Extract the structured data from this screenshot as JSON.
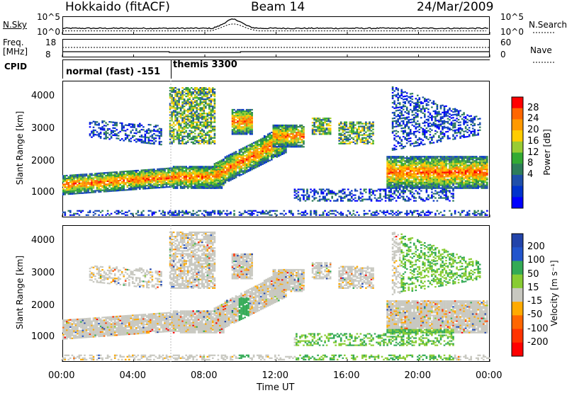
{
  "header": {
    "title": "Hokkaido (fitACF)",
    "beam": "Beam 14",
    "date": "24/Mar/2009"
  },
  "top_panel": {
    "left_label": "N.Sky",
    "right_label": "N.Search",
    "left_ticks": [
      "10^5",
      "10^0"
    ],
    "right_ticks": [
      "10^5",
      "10^0"
    ]
  },
  "freq_panel": {
    "left_label_1": "Freq.",
    "left_label_2": "[MHz]",
    "left_ticks": [
      "18",
      "8"
    ],
    "right_ticks": [
      "60",
      "0"
    ],
    "right_label": "Nave"
  },
  "cpid_panel": {
    "label": "CPID",
    "programs": [
      "normal (fast) -151",
      "themis 3300"
    ]
  },
  "power_panel": {
    "ylabel": "Slant Range [km]",
    "yticks": [
      "4000",
      "3000",
      "2000",
      "1000"
    ],
    "colorbar_label": "Power [dB]",
    "colorbar_ticks": [
      "28",
      "24",
      "20",
      "16",
      "12",
      "8",
      "4"
    ],
    "colors": [
      "#ff0000",
      "#ff6600",
      "#ff9900",
      "#ffcc00",
      "#99cc33",
      "#33aa33",
      "#2e7d5a",
      "#1f4faa",
      "#0033cc",
      "#0000ff"
    ]
  },
  "velocity_panel": {
    "ylabel": "Slant Range [km]",
    "yticks": [
      "4000",
      "3000",
      "2000",
      "1000"
    ],
    "colorbar_label": "Velocity [m s⁻¹]",
    "colorbar_ticks": [
      "200",
      "100",
      "50",
      "15",
      "-15",
      "-50",
      "-100",
      "-200"
    ],
    "colors": [
      "#2244aa",
      "#2255cc",
      "#33aa55",
      "#88cc33",
      "#c8c8c0",
      "#ffaa00",
      "#ff6600",
      "#ff3300",
      "#ff0000"
    ]
  },
  "x_axis": {
    "label": "Time UT",
    "ticks": [
      "00:00",
      "04:00",
      "08:00",
      "12:00",
      "16:00",
      "20:00",
      "00:00"
    ]
  },
  "chart_data": [
    {
      "type": "line",
      "title": "Hokkaido (fitACF)",
      "ylabel": "N.Sky",
      "series": [
        {
          "name": "N.Sky",
          "x": [
            "00:00",
            "04:00",
            "06:00",
            "08:00",
            "09:30",
            "10:30",
            "12:00",
            "16:00",
            "20:00",
            "24:00"
          ],
          "values": [
            3,
            3,
            3.5,
            4,
            12,
            6,
            3,
            3,
            3,
            3
          ]
        },
        {
          "name": "N.Search",
          "x": [
            "00:00",
            "04:00",
            "08:00",
            "09:30",
            "12:00",
            "16:00",
            "20:00",
            "24:00"
          ],
          "values": [
            1,
            1,
            1.5,
            8,
            1,
            1,
            1,
            1
          ]
        }
      ]
    },
    {
      "type": "heatmap",
      "ylabel": "Slant Range [km]",
      "xlabel": "Time UT",
      "colorbar": "Power [dB]",
      "ylim": [
        200,
        4500
      ],
      "xlim": [
        "00:00",
        "24:00"
      ],
      "clim": [
        0,
        30
      ]
    },
    {
      "type": "heatmap",
      "ylabel": "Slant Range [km]",
      "xlabel": "Time UT",
      "colorbar": "Velocity [m s⁻¹]",
      "ylim": [
        200,
        4500
      ],
      "xlim": [
        "00:00",
        "24:00"
      ],
      "clim": [
        -200,
        200
      ]
    }
  ]
}
